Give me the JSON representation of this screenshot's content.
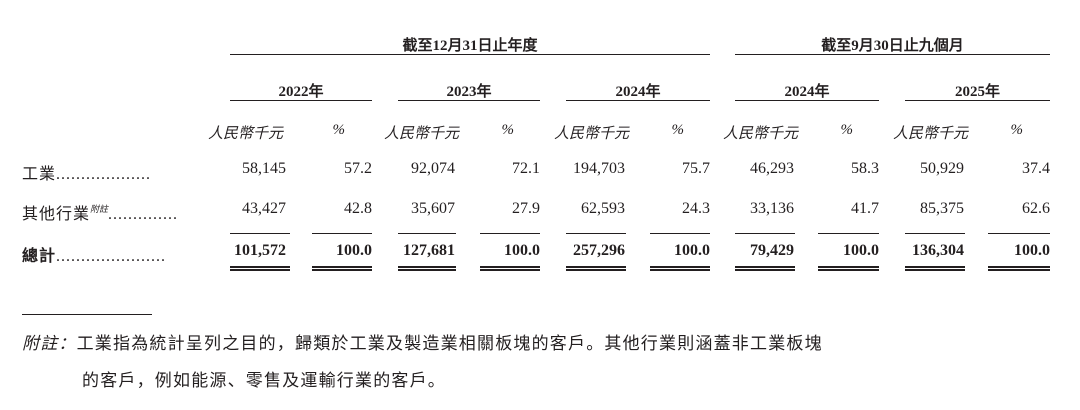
{
  "header": {
    "group1": "截至12月31日止年度",
    "group2": "截至9月30日止九個月",
    "years": [
      "2022年",
      "2023年",
      "2024年",
      "2024年",
      "2025年"
    ],
    "unit_rmb": "人民幣千元",
    "unit_pct": "%"
  },
  "rows": [
    {
      "label": "工業",
      "sup": "",
      "dots": "...................",
      "values": [
        "58,145",
        "57.2",
        "92,074",
        "72.1",
        "194,703",
        "75.7",
        "46,293",
        "58.3",
        "50,929",
        "37.4"
      ]
    },
    {
      "label": "其他行業",
      "sup": "附註",
      "dots": "..............",
      "values": [
        "43,427",
        "42.8",
        "35,607",
        "27.9",
        "62,593",
        "24.3",
        "33,136",
        "41.7",
        "85,375",
        "62.6"
      ]
    }
  ],
  "total": {
    "label": "總計",
    "dots": "......................",
    "values": [
      "101,572",
      "100.0",
      "127,681",
      "100.0",
      "257,296",
      "100.0",
      "79,429",
      "100.0",
      "136,304",
      "100.0"
    ]
  },
  "footnote": {
    "label": "附註：",
    "line1": "工業指為統計呈列之目的，歸類於工業及製造業相關板塊的客戶。其他行業則涵蓋非工業板塊",
    "line2": "的客戶，例如能源、零售及運輸行業的客戶。"
  }
}
